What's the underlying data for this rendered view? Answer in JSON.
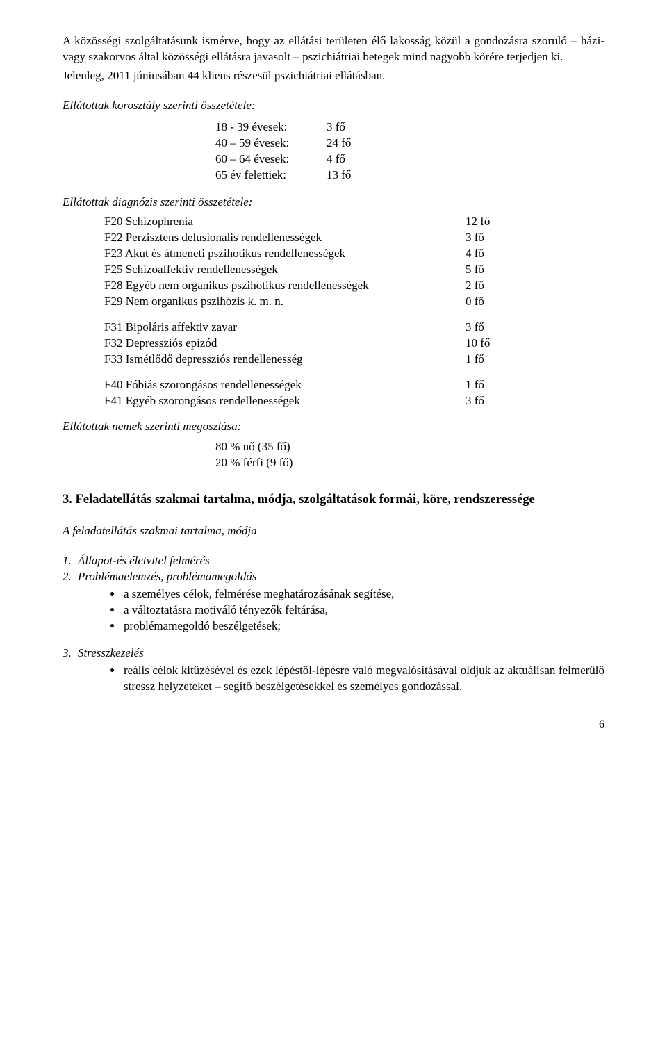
{
  "intro": {
    "p1": "A közösségi szolgáltatásunk ismérve, hogy az ellátási területen élő lakosság közül a gondozásra szoruló – házi- vagy szakorvos által közösségi ellátásra javasolt – pszichiátriai betegek mind nagyobb körére terjedjen ki.",
    "p2": "Jelenleg, 2011 júniusában 44 kliens részesül pszichiátriai ellátásban."
  },
  "ageSection": {
    "title": "Ellátottak korosztály szerinti összetétele:",
    "rows": [
      {
        "label": "18 - 39 évesek:",
        "value": "3 fő"
      },
      {
        "label": "40 – 59 évesek:",
        "value": "24 fő"
      },
      {
        "label": "60 – 64 évesek:",
        "value": "4 fő"
      },
      {
        "label": "65 év felettiek:",
        "value": "13 fő"
      }
    ]
  },
  "diagSection": {
    "title": "Ellátottak diagnózis szerinti összetétele:",
    "groups": [
      [
        {
          "label": "F20 Schizophrenia",
          "value": "12 fő"
        },
        {
          "label": "F22 Perzisztens delusionalis rendellenességek",
          "value": "3 fő"
        },
        {
          "label": "F23 Akut és átmeneti pszihotikus rendellenességek",
          "value": "4 fő"
        },
        {
          "label": "F25 Schizoaffektiv rendellenességek",
          "value": "5 fő"
        },
        {
          "label": "F28 Egyéb nem organikus pszihotikus rendellenességek",
          "value": "2 fő"
        },
        {
          "label": "F29 Nem organikus pszihózis k. m. n.",
          "value": "0 fő"
        }
      ],
      [
        {
          "label": "F31 Bipoláris affektiv zavar",
          "value": "3 fő"
        },
        {
          "label": "F32 Depressziós epizód",
          "value": "10 fő"
        },
        {
          "label": "F33 Ismétlődő depressziós rendellenesség",
          "value": "1 fő"
        }
      ],
      [
        {
          "label": "F40 Fóbiás szorongásos rendellenességek",
          "value": "1 fő"
        },
        {
          "label": "F41 Egyéb szorongásos rendellenességek",
          "value": "3 fő"
        }
      ]
    ]
  },
  "genderSection": {
    "title": "Ellátottak nemek szerinti megoszlása:",
    "rows": [
      "80 % nő (35 fő)",
      "20 % férfi (9 fő)"
    ]
  },
  "section3": {
    "heading": "3. Feladatellátás szakmai tartalma, módja, szolgáltatások formái, köre, rendszeressége",
    "subheading": "A feladatellátás szakmai tartalma, módja",
    "list": [
      {
        "num": "1.",
        "label": "Állapot-és életvitel felmérés"
      },
      {
        "num": "2.",
        "label": "Problémaelemzés, problémamegoldás"
      }
    ],
    "bullets2": [
      "a személyes célok, felmérése meghatározásának segítése,",
      "a változtatásra motiváló tényezők feltárása,",
      "problémamegoldó beszélgetések;"
    ],
    "list3": {
      "num": "3.",
      "label": "Stresszkezelés"
    },
    "bullets3": [
      "reális célok kitűzésével és ezek lépéstől-lépésre való megvalósításával oldjuk az aktuálisan felmerülő stressz helyzeteket – segítő beszélgetésekkel és személyes gondozással."
    ]
  },
  "pageNumber": "6"
}
